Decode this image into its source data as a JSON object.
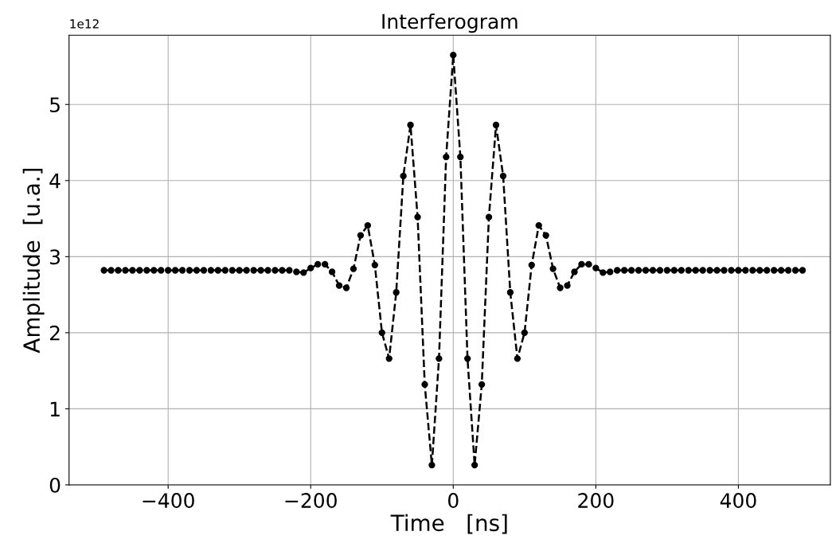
{
  "chart_data": {
    "type": "line",
    "title": "Interferogram",
    "xlabel": "Time   [ns]",
    "ylabel": "Amplitude  [u.a.]",
    "annotations": [
      "1e12"
    ],
    "x": [
      -490,
      -480,
      -470,
      -460,
      -450,
      -440,
      -430,
      -420,
      -410,
      -400,
      -390,
      -380,
      -370,
      -360,
      -350,
      -340,
      -330,
      -320,
      -310,
      -300,
      -290,
      -280,
      -270,
      -260,
      -250,
      -240,
      -230,
      -220,
      -210,
      -200,
      -190,
      -180,
      -170,
      -160,
      -150,
      -140,
      -130,
      -120,
      -110,
      -100,
      -90,
      -80,
      -70,
      -60,
      -50,
      -40,
      -30,
      -20,
      -10,
      0,
      10,
      20,
      30,
      40,
      50,
      60,
      70,
      80,
      90,
      100,
      110,
      120,
      130,
      140,
      150,
      160,
      170,
      180,
      190,
      200,
      210,
      220,
      230,
      240,
      250,
      260,
      270,
      280,
      290,
      300,
      310,
      320,
      330,
      340,
      350,
      360,
      370,
      380,
      390,
      400,
      410,
      420,
      430,
      440,
      450,
      460,
      470,
      480,
      490
    ],
    "series": [
      {
        "color": "#000000",
        "values": [
          2.82,
          2.82,
          2.82,
          2.82,
          2.82,
          2.82,
          2.82,
          2.82,
          2.82,
          2.82,
          2.82,
          2.82,
          2.82,
          2.82,
          2.82,
          2.82,
          2.82,
          2.82,
          2.82,
          2.82,
          2.82,
          2.82,
          2.82,
          2.82,
          2.82,
          2.82,
          2.82,
          2.8,
          2.79,
          2.85,
          2.9,
          2.9,
          2.8,
          2.62,
          2.59,
          2.84,
          3.28,
          3.41,
          2.89,
          2.0,
          1.66,
          2.53,
          4.06,
          4.73,
          3.52,
          1.32,
          0.26,
          1.66,
          4.31,
          5.65,
          4.31,
          1.66,
          0.26,
          1.32,
          3.52,
          4.73,
          4.06,
          2.53,
          1.66,
          2.0,
          2.89,
          3.41,
          3.28,
          2.84,
          2.59,
          2.62,
          2.8,
          2.9,
          2.9,
          2.85,
          2.79,
          2.8,
          2.82,
          2.82,
          2.82,
          2.82,
          2.82,
          2.82,
          2.82,
          2.82,
          2.82,
          2.82,
          2.82,
          2.82,
          2.82,
          2.82,
          2.82,
          2.82,
          2.82,
          2.82,
          2.82,
          2.82,
          2.82,
          2.82,
          2.82,
          2.82,
          2.82,
          2.82,
          2.82
        ]
      }
    ],
    "xlim": [
      -539,
      529
    ],
    "ylim": [
      0,
      5.91
    ],
    "xticks": [
      -400,
      -200,
      0,
      200,
      400
    ],
    "yticks": [
      0,
      1,
      2,
      3,
      4,
      5
    ],
    "grid": true,
    "marker": "circle",
    "line_style": "dashed"
  }
}
